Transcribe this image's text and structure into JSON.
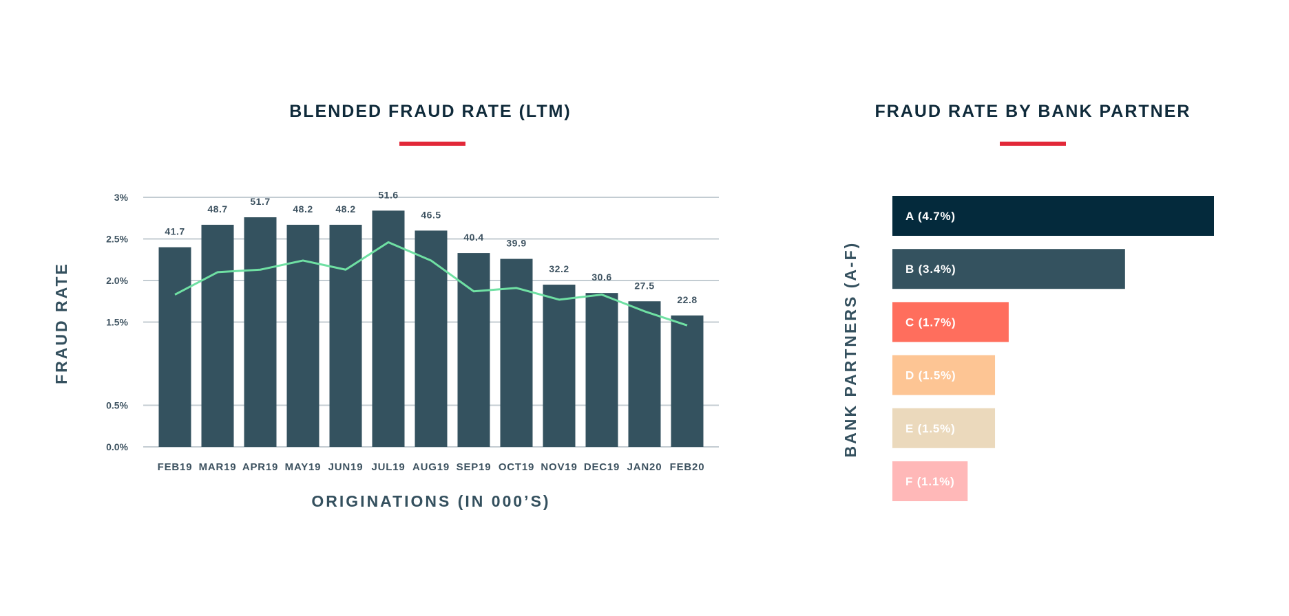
{
  "chart_data": [
    {
      "type": "bar",
      "title": "BLENDED FRAUD RATE (LTM)",
      "xlabel": "ORIGINATIONS (IN 000’S)",
      "ylabel": "FRAUD RATE",
      "yticks": [
        "0.0%",
        "0.5%",
        "1.5%",
        "2.0%",
        "2.5%",
        "3%"
      ],
      "ylim": [
        0,
        3.0
      ],
      "grid": true,
      "categories": [
        "FEB19",
        "MAR19",
        "APR19",
        "MAY19",
        "JUN19",
        "JUL19",
        "AUG19",
        "SEP19",
        "OCT19",
        "NOV19",
        "DEC19",
        "JAN20",
        "FEB20"
      ],
      "series": [
        {
          "type": "bar",
          "values": [
            2.4,
            2.67,
            2.76,
            2.67,
            2.67,
            2.84,
            2.6,
            2.33,
            2.26,
            1.95,
            1.85,
            1.75,
            1.58
          ],
          "data_labels": [
            "41.7",
            "48.7",
            "51.7",
            "48.2",
            "48.2",
            "51.6",
            "46.5",
            "40.4",
            "39.9",
            "32.2",
            "30.6",
            "27.5",
            "22.8"
          ],
          "color": "#34525f"
        },
        {
          "type": "line",
          "values": [
            1.83,
            2.1,
            2.13,
            2.24,
            2.13,
            2.46,
            2.24,
            1.87,
            1.91,
            1.77,
            1.83,
            1.63,
            1.46
          ],
          "color": "#6fe0a3"
        }
      ]
    },
    {
      "type": "bar",
      "orientation": "horizontal",
      "title": "FRAUD RATE BY BANK PARTNER",
      "ylabel": "BANK PARTNERS (A-F)",
      "categories": [
        "A (4.7%)",
        "B (3.4%)",
        "C (1.7%)",
        "D (1.5%)",
        "E (1.5%)",
        "F (1.1%)"
      ],
      "values": [
        4.7,
        3.4,
        1.7,
        1.5,
        1.5,
        1.1
      ],
      "colors": [
        "#042a3c",
        "#34525f",
        "#ff6e5d",
        "#fdc594",
        "#ebd9bc",
        "#ffb8b8"
      ]
    }
  ],
  "accent_color": "#e22838"
}
